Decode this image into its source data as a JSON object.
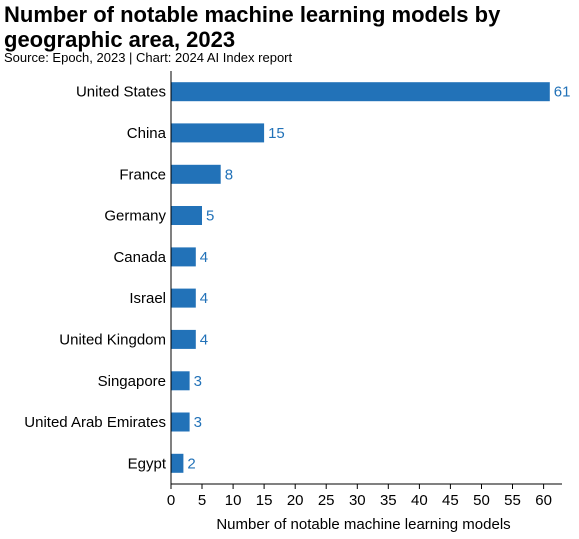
{
  "chart_data": {
    "type": "bar",
    "orientation": "horizontal",
    "title": "Number of notable machine learning models by geographic area, 2023",
    "source": "Source: Epoch, 2023 | Chart: 2024 AI Index report",
    "categories": [
      "United States",
      "China",
      "France",
      "Germany",
      "Canada",
      "Israel",
      "United Kingdom",
      "Singapore",
      "United Arab Emirates",
      "Egypt"
    ],
    "values": [
      61,
      15,
      8,
      5,
      4,
      4,
      4,
      3,
      3,
      2
    ],
    "xlabel": "Number of notable machine learning models",
    "ylabel": "",
    "xlim": [
      0,
      62
    ],
    "xticks": [
      0,
      5,
      10,
      15,
      20,
      25,
      30,
      35,
      40,
      45,
      50,
      55,
      60
    ],
    "grid": false,
    "legend": "none",
    "bar_color": "#2272b8",
    "label_color": "#2272b8"
  }
}
